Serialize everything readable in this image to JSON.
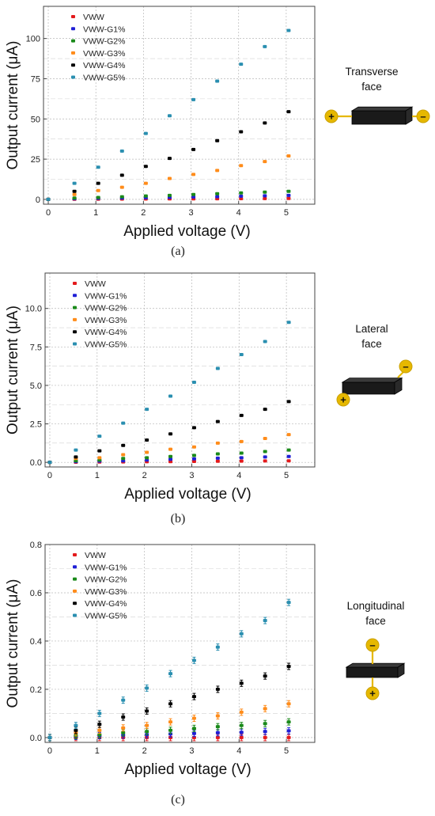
{
  "chart_data": [
    {
      "type": "scatter",
      "xlabel": "Applied voltage (V)",
      "ylabel": "Output current (μA)",
      "caption": "(a)",
      "face_label": [
        "Transverse",
        "face"
      ],
      "x_ticks": [
        "0",
        "1",
        "2",
        "3",
        "4",
        "5"
      ],
      "y_ticks": [
        "0",
        "25",
        "50",
        "75",
        "100"
      ],
      "xlim": [
        -0.1,
        5.6
      ],
      "ylim": [
        -3,
        120
      ],
      "grid": true,
      "legend_position": "top-left",
      "x": [
        0,
        0.55,
        1.05,
        1.55,
        2.05,
        2.55,
        3.05,
        3.55,
        4.05,
        4.55,
        5.05
      ],
      "series": [
        {
          "name": "VWW",
          "color": "#e31a1c",
          "values": [
            0,
            0.1,
            0.15,
            0.2,
            0.25,
            0.3,
            0.35,
            0.4,
            0.45,
            0.5,
            0.55
          ]
        },
        {
          "name": "VWW-G1%",
          "color": "#1f1fd6",
          "values": [
            0,
            0.4,
            0.6,
            0.8,
            1.0,
            1.2,
            1.5,
            1.7,
            2.0,
            2.2,
            2.5
          ]
        },
        {
          "name": "VWW-G2%",
          "color": "#1a8a1a",
          "values": [
            0,
            0.8,
            1.2,
            1.6,
            2.1,
            2.5,
            3.0,
            3.5,
            4.0,
            4.5,
            5.0
          ]
        },
        {
          "name": "VWW-G3%",
          "color": "#ff8c1a",
          "values": [
            0,
            3,
            5.5,
            7.5,
            10,
            13,
            15.5,
            18,
            21,
            23.5,
            27
          ]
        },
        {
          "name": "VWW-G4%",
          "color": "#000000",
          "values": [
            0,
            5,
            10,
            15,
            20.5,
            25.5,
            31,
            36.5,
            42,
            47.5,
            54.5
          ]
        },
        {
          "name": "VWW-G5%",
          "color": "#2a8fb0",
          "values": [
            0,
            10,
            20,
            30,
            41,
            52,
            62,
            73.5,
            84,
            95,
            105
          ]
        }
      ]
    },
    {
      "type": "scatter",
      "xlabel": "Applied voltage (V)",
      "ylabel": "Output current (μA)",
      "caption": "(b)",
      "face_label": [
        "Lateral",
        "face"
      ],
      "x_ticks": [
        "0",
        "1",
        "2",
        "3",
        "4",
        "5"
      ],
      "y_ticks": [
        "0.0",
        "2.5",
        "5.0",
        "7.5",
        "10.0"
      ],
      "xlim": [
        -0.1,
        5.6
      ],
      "ylim": [
        -0.3,
        12.3
      ],
      "grid": true,
      "legend_position": "top-left",
      "x": [
        0,
        0.55,
        1.05,
        1.55,
        2.05,
        2.55,
        3.05,
        3.55,
        4.05,
        4.55,
        5.05
      ],
      "series": [
        {
          "name": "VWW",
          "color": "#e31a1c",
          "values": [
            0,
            0.01,
            0.02,
            0.03,
            0.04,
            0.05,
            0.06,
            0.07,
            0.08,
            0.09,
            0.1
          ]
        },
        {
          "name": "VWW-G1%",
          "color": "#1f1fd6",
          "values": [
            0,
            0.05,
            0.08,
            0.1,
            0.15,
            0.2,
            0.23,
            0.27,
            0.3,
            0.35,
            0.38
          ]
        },
        {
          "name": "VWW-G2%",
          "color": "#1a8a1a",
          "values": [
            0,
            0.1,
            0.15,
            0.25,
            0.3,
            0.38,
            0.45,
            0.55,
            0.6,
            0.7,
            0.8
          ]
        },
        {
          "name": "VWW-G3%",
          "color": "#ff8c1a",
          "values": [
            0,
            0.25,
            0.3,
            0.5,
            0.65,
            0.85,
            1.0,
            1.25,
            1.35,
            1.55,
            1.8
          ]
        },
        {
          "name": "VWW-G4%",
          "color": "#000000",
          "values": [
            0,
            0.35,
            0.75,
            1.1,
            1.45,
            1.85,
            2.25,
            2.65,
            3.05,
            3.45,
            3.95
          ]
        },
        {
          "name": "VWW-G5%",
          "color": "#2a8fb0",
          "values": [
            0,
            0.8,
            1.7,
            2.55,
            3.45,
            4.3,
            5.2,
            6.1,
            7.0,
            7.85,
            9.1
          ]
        }
      ]
    },
    {
      "type": "scatter",
      "xlabel": "Applied voltage (V)",
      "ylabel": "Output current (μA)",
      "caption": "(c)",
      "face_label": [
        "Longitudinal",
        "face"
      ],
      "x_ticks": [
        "0",
        "1",
        "2",
        "3",
        "4",
        "5"
      ],
      "y_ticks": [
        "0.0",
        "0.2",
        "0.4",
        "0.6",
        "0.8"
      ],
      "xlim": [
        -0.1,
        5.6
      ],
      "ylim": [
        -0.02,
        0.8
      ],
      "grid": true,
      "legend_position": "top-left",
      "error_bars": true,
      "x": [
        0,
        0.55,
        1.05,
        1.55,
        2.05,
        2.55,
        3.05,
        3.55,
        4.05,
        4.55,
        5.05
      ],
      "series": [
        {
          "name": "VWW",
          "color": "#e31a1c",
          "values": [
            0,
            0,
            0,
            0,
            0,
            0,
            0,
            0,
            0,
            0,
            0
          ]
        },
        {
          "name": "VWW-G1%",
          "color": "#1f1fd6",
          "values": [
            0,
            0.005,
            0.008,
            0.01,
            0.012,
            0.015,
            0.017,
            0.02,
            0.022,
            0.025,
            0.028
          ]
        },
        {
          "name": "VWW-G2%",
          "color": "#1a8a1a",
          "values": [
            0,
            0.008,
            0.012,
            0.02,
            0.025,
            0.03,
            0.038,
            0.045,
            0.05,
            0.058,
            0.065
          ]
        },
        {
          "name": "VWW-G3%",
          "color": "#ff8c1a",
          "values": [
            0,
            0.02,
            0.03,
            0.04,
            0.05,
            0.065,
            0.08,
            0.09,
            0.105,
            0.12,
            0.14
          ]
        },
        {
          "name": "VWW-G4%",
          "color": "#000000",
          "values": [
            0,
            0.03,
            0.055,
            0.085,
            0.11,
            0.14,
            0.17,
            0.2,
            0.225,
            0.255,
            0.295
          ]
        },
        {
          "name": "VWW-G5%",
          "color": "#2a8fb0",
          "values": [
            0,
            0.05,
            0.1,
            0.155,
            0.205,
            0.265,
            0.32,
            0.375,
            0.43,
            0.485,
            0.56
          ]
        }
      ]
    }
  ]
}
